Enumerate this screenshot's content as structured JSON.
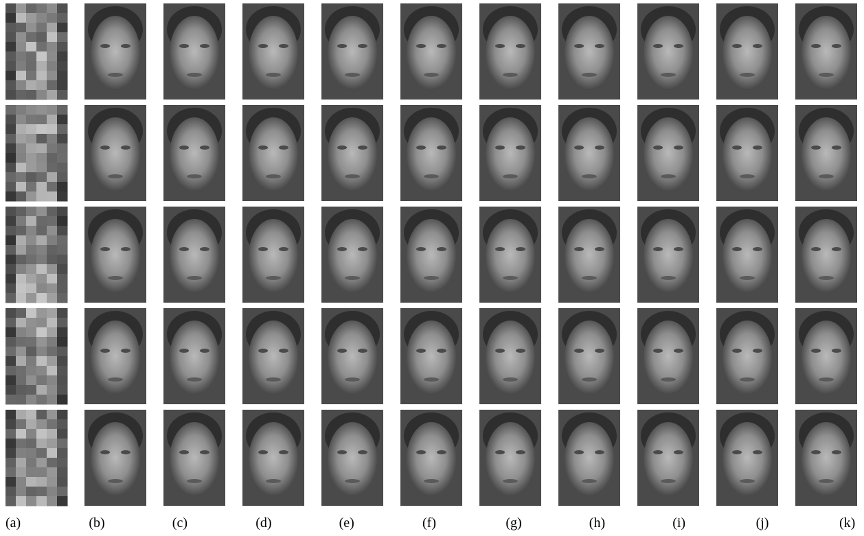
{
  "labels": [
    "(a)",
    "(b)",
    "(c)",
    "(d)",
    "(e)",
    "(f)",
    "(g)",
    "(h)",
    "(i)",
    "(j)",
    "(k)"
  ]
}
